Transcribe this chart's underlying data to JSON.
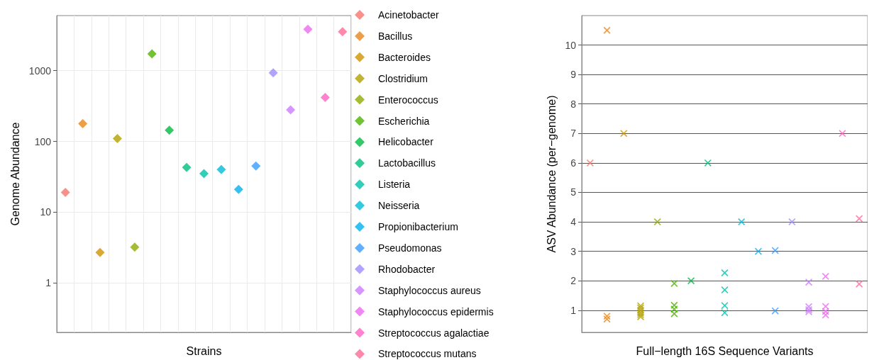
{
  "chart_data": [
    {
      "type": "scatter",
      "xlabel": "Strains",
      "ylabel": "Genome Abundance",
      "categories": [
        null,
        null,
        null,
        null,
        null,
        null,
        null,
        null,
        null,
        null,
        null,
        null,
        null,
        null,
        null,
        null,
        null
      ],
      "log": "y",
      "ylim": [
        0.2,
        6000
      ],
      "yticks": [
        1,
        10,
        100,
        1000
      ],
      "grid": true,
      "legend": "right",
      "marker": "diamond",
      "tick_labels": "y",
      "series": [
        {
          "name": "Acinetobacter",
          "color": "#f8766d",
          "values": [
            19,
            null,
            null,
            null,
            null,
            null,
            null,
            null,
            null,
            null,
            null,
            null,
            null,
            null,
            null,
            null,
            null
          ]
        },
        {
          "name": "Bacillus",
          "color": "#e7861b",
          "values": [
            null,
            178,
            null,
            null,
            null,
            null,
            null,
            null,
            null,
            null,
            null,
            null,
            null,
            null,
            null,
            null,
            null
          ]
        },
        {
          "name": "Bacteroides",
          "color": "#d09400",
          "values": [
            null,
            null,
            2.7,
            null,
            null,
            null,
            null,
            null,
            null,
            null,
            null,
            null,
            null,
            null,
            null,
            null,
            null
          ]
        },
        {
          "name": "Clostridium",
          "color": "#b2a000",
          "values": [
            null,
            null,
            null,
            110,
            null,
            null,
            null,
            null,
            null,
            null,
            null,
            null,
            null,
            null,
            null,
            null,
            null
          ]
        },
        {
          "name": "Enterococcus",
          "color": "#8eab00",
          "values": [
            null,
            null,
            null,
            null,
            3.2,
            null,
            null,
            null,
            null,
            null,
            null,
            null,
            null,
            null,
            null,
            null,
            null
          ]
        },
        {
          "name": "Escherichia",
          "color": "#4fb400",
          "values": [
            null,
            null,
            null,
            null,
            null,
            1730,
            null,
            null,
            null,
            null,
            null,
            null,
            null,
            null,
            null,
            null,
            null
          ]
        },
        {
          "name": "Helicobacter",
          "color": "#00ba42",
          "values": [
            null,
            null,
            null,
            null,
            null,
            null,
            144,
            null,
            null,
            null,
            null,
            null,
            null,
            null,
            null,
            null,
            null
          ]
        },
        {
          "name": "Lactobacillus",
          "color": "#00be80",
          "values": [
            null,
            null,
            null,
            null,
            null,
            null,
            null,
            43,
            null,
            null,
            null,
            null,
            null,
            null,
            null,
            null,
            null
          ]
        },
        {
          "name": "Listeria",
          "color": "#00c0ab",
          "values": [
            null,
            null,
            null,
            null,
            null,
            null,
            null,
            null,
            35,
            null,
            null,
            null,
            null,
            null,
            null,
            null,
            null
          ]
        },
        {
          "name": "Neisseria",
          "color": "#00bcd6",
          "values": [
            null,
            null,
            null,
            null,
            null,
            null,
            null,
            null,
            null,
            40,
            null,
            null,
            null,
            null,
            null,
            null,
            null
          ]
        },
        {
          "name": "Propionibacterium",
          "color": "#00b2f0",
          "values": [
            null,
            null,
            null,
            null,
            null,
            null,
            null,
            null,
            null,
            null,
            21,
            null,
            null,
            null,
            null,
            null,
            null
          ]
        },
        {
          "name": "Pseudomonas",
          "color": "#3a9cff",
          "values": [
            null,
            null,
            null,
            null,
            null,
            null,
            null,
            null,
            null,
            null,
            null,
            45,
            null,
            null,
            null,
            null,
            null
          ]
        },
        {
          "name": "Rhodobacter",
          "color": "#a08cff",
          "values": [
            null,
            null,
            null,
            null,
            null,
            null,
            null,
            null,
            null,
            null,
            null,
            null,
            930,
            null,
            null,
            null,
            null
          ]
        },
        {
          "name": "Staphylococcus aureus",
          "color": "#cd7bff",
          "values": [
            null,
            null,
            null,
            null,
            null,
            null,
            null,
            null,
            null,
            null,
            null,
            null,
            null,
            280,
            null,
            null,
            null
          ]
        },
        {
          "name": "Staphylococcus epidermis",
          "color": "#ec69ef",
          "values": [
            null,
            null,
            null,
            null,
            null,
            null,
            null,
            null,
            null,
            null,
            null,
            null,
            null,
            null,
            3860,
            null,
            null
          ]
        },
        {
          "name": "Streptococcus agalactiae",
          "color": "#ff62c4",
          "values": [
            null,
            null,
            null,
            null,
            null,
            null,
            null,
            null,
            null,
            null,
            null,
            null,
            null,
            null,
            null,
            417,
            null
          ]
        },
        {
          "name": "Streptococcus mutans",
          "color": "#ff6a97",
          "values": [
            null,
            null,
            null,
            null,
            null,
            null,
            null,
            null,
            null,
            null,
            null,
            null,
            null,
            null,
            null,
            null,
            3550
          ]
        }
      ]
    },
    {
      "type": "scatter",
      "xlabel": "Full−length 16S Sequence Variants",
      "ylabel": "ASV Abundance (per−genome)",
      "categories": [
        null,
        null,
        null,
        null,
        null,
        null,
        null,
        null,
        null,
        null,
        null,
        null,
        null,
        null,
        null,
        null,
        null
      ],
      "ylim": [
        0.25,
        11
      ],
      "yticks": [
        1,
        2,
        3,
        4,
        5,
        6,
        7,
        8,
        9,
        10
      ],
      "grid": "y",
      "marker": "cross",
      "tick_labels": "y",
      "series": [
        {
          "colors": [
            "#f8766d",
            "#e7861b",
            "#d09400",
            "#b2a000",
            "#8eab00",
            "#4fb400",
            "#00ba42",
            "#00be80",
            "#00c0ab",
            "#00bcd6",
            "#00b2f0",
            "#3a9cff",
            "#a08cff",
            "#cd7bff",
            "#ec69ef",
            "#ff62c4",
            "#ff6a97"
          ],
          "values": [
            6,
            10.5,
            7,
            1.15,
            4,
            1.91,
            2,
            6,
            2.27,
            4,
            3,
            3.03,
            4,
            1.95,
            2.15,
            7,
            4.11
          ]
        },
        {
          "colors": [
            "#f8766d",
            "#e7861b",
            "#d09400",
            "#b2a000",
            "#8eab00",
            "#4fb400",
            "#00ba42",
            "#00be80",
            "#00c0ab",
            "#00bcd6",
            "#00b2f0",
            "#3a9cff",
            "#a08cff",
            "#cd7bff",
            "#ec69ef",
            "#ff62c4",
            "#ff6a97"
          ],
          "values": [
            null,
            0.8,
            null,
            1.08,
            null,
            1.17,
            null,
            null,
            1.69,
            null,
            null,
            0.98,
            null,
            1.12,
            1.13,
            null,
            1.89
          ]
        },
        {
          "colors": [
            "#f8766d",
            "#e7861b",
            "#d09400",
            "#b2a000",
            "#8eab00",
            "#4fb400",
            "#00ba42",
            "#00be80",
            "#00c0ab",
            "#00bcd6",
            "#00b2f0",
            "#3a9cff",
            "#a08cff",
            "#cd7bff",
            "#ec69ef",
            "#ff62c4",
            "#ff6a97"
          ],
          "values": [
            null,
            0.7,
            null,
            1,
            null,
            1.04,
            null,
            null,
            1.16,
            null,
            null,
            null,
            null,
            1.02,
            0.96,
            null,
            null
          ]
        },
        {
          "colors": [
            "#f8766d",
            "#e7861b",
            "#d09400",
            "#b2a000",
            "#8eab00",
            "#4fb400",
            "#00ba42",
            "#00be80",
            "#00c0ab",
            "#00bcd6",
            "#00b2f0",
            "#3a9cff",
            "#a08cff",
            "#cd7bff",
            "#ec69ef",
            "#ff62c4",
            "#ff6a97"
          ],
          "values": [
            null,
            null,
            null,
            0.92,
            null,
            0.88,
            null,
            null,
            0.92,
            null,
            null,
            null,
            null,
            0.95,
            0.84,
            null,
            null
          ]
        },
        {
          "colors": [
            "#f8766d",
            "#e7861b",
            "#d09400",
            "#b2a000",
            "#8eab00",
            "#4fb400",
            "#00ba42",
            "#00be80",
            "#00c0ab",
            "#00bcd6",
            "#00b2f0",
            "#3a9cff",
            "#a08cff",
            "#cd7bff",
            "#ec69ef",
            "#ff62c4",
            "#ff6a97"
          ],
          "values": [
            null,
            null,
            null,
            0.85,
            null,
            null,
            null,
            null,
            null,
            null,
            null,
            null,
            null,
            null,
            null,
            null,
            null
          ]
        },
        {
          "colors": [
            "#f8766d",
            "#e7861b",
            "#d09400",
            "#b2a000",
            "#8eab00",
            "#4fb400",
            "#00ba42",
            "#00be80",
            "#00c0ab",
            "#00bcd6",
            "#00b2f0",
            "#3a9cff",
            "#a08cff",
            "#cd7bff",
            "#ec69ef",
            "#ff62c4",
            "#ff6a97"
          ],
          "values": [
            null,
            null,
            null,
            0.78,
            null,
            null,
            null,
            null,
            null,
            null,
            null,
            null,
            null,
            null,
            null,
            null,
            null
          ]
        }
      ]
    }
  ]
}
